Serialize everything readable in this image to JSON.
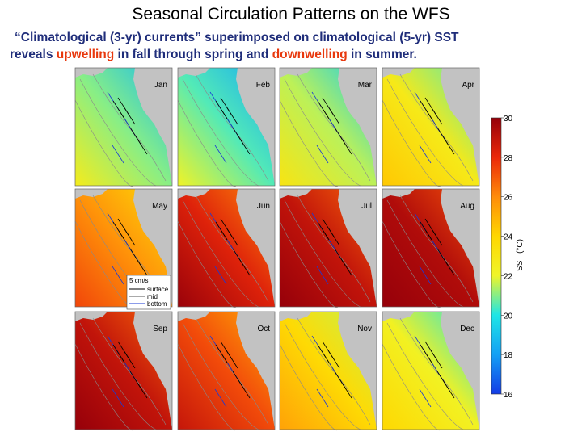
{
  "title": "Seasonal Circulation Patterns on the WFS",
  "subtitle": {
    "line1": "“Climatological (3-yr) currents” superimposed on climatological (5-yr) SST",
    "line2_a": "reveals ",
    "line2_b": "upwelling",
    "line2_c": " in fall through spring and ",
    "line2_d": "downwelling",
    "line2_e": " in summer."
  },
  "panels": [
    {
      "month": "Jan",
      "sst": 21.0
    },
    {
      "month": "Feb",
      "sst": 20.5
    },
    {
      "month": "Mar",
      "sst": 21.5
    },
    {
      "month": "Apr",
      "sst": 22.8
    },
    {
      "month": "May",
      "sst": 25.8
    },
    {
      "month": "Jun",
      "sst": 28.3
    },
    {
      "month": "Jul",
      "sst": 29.0
    },
    {
      "month": "Aug",
      "sst": 29.4
    },
    {
      "month": "Sep",
      "sst": 29.0
    },
    {
      "month": "Oct",
      "sst": 27.3
    },
    {
      "month": "Nov",
      "sst": 23.8
    },
    {
      "month": "Dec",
      "sst": 22.3
    }
  ],
  "legend": {
    "scale": "5 cm/s",
    "items": [
      "surface",
      "mid",
      "bottom"
    ],
    "colors": [
      "#000000",
      "#555555",
      "#1a3ad6"
    ]
  },
  "colorbar": {
    "label": "SST (°C)",
    "min": 16,
    "max": 30,
    "ticks": [
      "30",
      "28",
      "26",
      "24",
      "22",
      "20",
      "18",
      "16"
    ]
  },
  "colors": {
    "land": "#c2c2c2",
    "subtitle_text": "#1f2d7a",
    "highlight": "#e8380d"
  }
}
